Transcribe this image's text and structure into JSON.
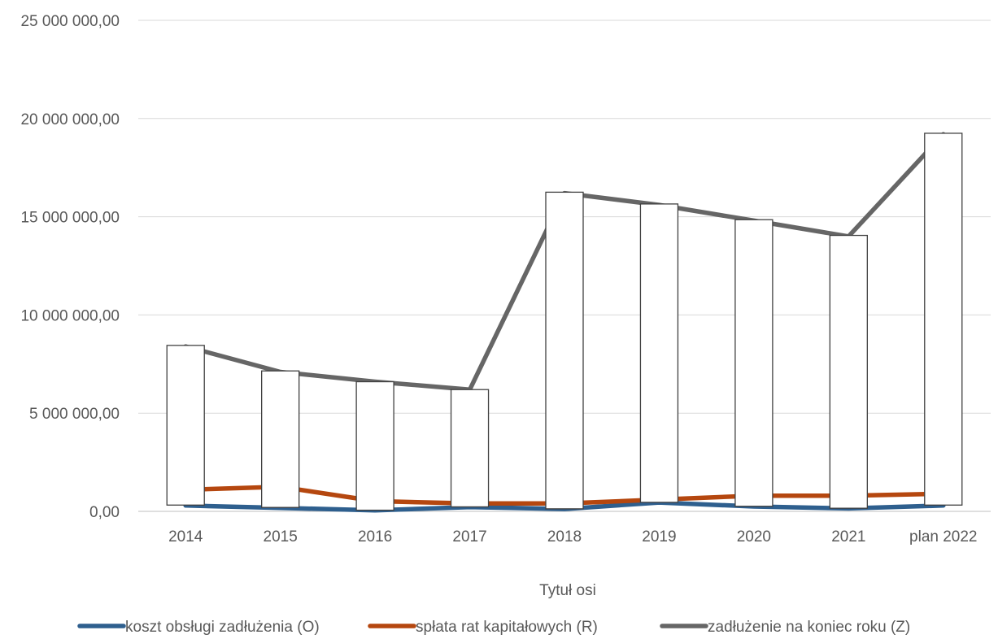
{
  "chart_data": {
    "type": "line",
    "title": "",
    "xlabel": "Tytuł osi",
    "ylabel": "",
    "categories": [
      "2014",
      "2015",
      "2016",
      "2017",
      "2018",
      "2019",
      "2020",
      "2021",
      "plan 2022"
    ],
    "ylim": [
      0,
      25000000
    ],
    "yticks": [
      0,
      5000000,
      10000000,
      15000000,
      20000000,
      25000000
    ],
    "ytick_labels": [
      "0,00",
      "5 000 000,00",
      "10 000 000,00",
      "15 000 000,00",
      "20 000 000,00",
      "25 000 000,00"
    ],
    "grid": true,
    "legend_position": "bottom",
    "series": [
      {
        "name": "koszt obsługi zadłużenia (O)",
        "color": "#2E5F8E",
        "values": [
          300000,
          180000,
          50000,
          220000,
          120000,
          450000,
          250000,
          150000,
          300000
        ]
      },
      {
        "name": "spłata rat kapitałowych (R)",
        "color": "#B5470F",
        "values": [
          1100000,
          1250000,
          520000,
          400000,
          400000,
          600000,
          800000,
          800000,
          900000
        ]
      },
      {
        "name": "zadłużenie na koniec roku (Z)",
        "color": "#666666",
        "values": [
          8400000,
          7100000,
          6600000,
          6200000,
          16200000,
          15600000,
          14800000,
          14000000,
          19200000
        ]
      }
    ],
    "overlay_boxes": {
      "description_free": true,
      "top_values": [
        8450000,
        7150000,
        6600000,
        6200000,
        16250000,
        15650000,
        14850000,
        14050000,
        19250000
      ],
      "bottom_values": [
        320000,
        200000,
        60000,
        230000,
        130000,
        460000,
        260000,
        160000,
        320000
      ],
      "fill": "#FFFFFF",
      "stroke": "#404040"
    }
  }
}
